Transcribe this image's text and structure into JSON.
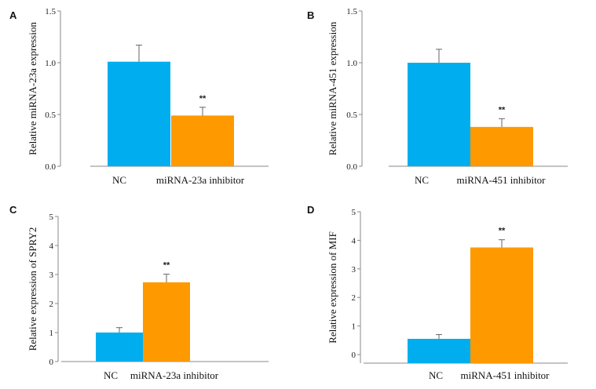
{
  "colors": {
    "nc": "#00AEEF",
    "inhibitor": "#FF9900",
    "axis": "#888888",
    "error": "#666666"
  },
  "chart_data": [
    {
      "panel": "A",
      "type": "bar",
      "categories": [
        "NC",
        "miRNA-23a inhibitor"
      ],
      "values": [
        1.01,
        0.49
      ],
      "errors": [
        0.16,
        0.08
      ],
      "significance": [
        "",
        "**"
      ],
      "ylabel": "Relative miRNA-23a expression",
      "ylim": [
        0,
        1.5
      ],
      "yticks": [
        "0.0",
        "0.5",
        "1.0",
        "1.5"
      ],
      "ytick_values": [
        0,
        0.5,
        1.0,
        1.5
      ],
      "grid": false
    },
    {
      "panel": "B",
      "type": "bar",
      "categories": [
        "NC",
        "miRNA-451 inhibitor"
      ],
      "values": [
        1.0,
        0.38
      ],
      "errors": [
        0.13,
        0.08
      ],
      "significance": [
        "",
        "**"
      ],
      "ylabel": "Relative miRNA-451 expression",
      "ylim": [
        0,
        1.5
      ],
      "yticks": [
        "0.0",
        "0.5",
        "1.0",
        "1.5"
      ],
      "ytick_values": [
        0,
        0.5,
        1.0,
        1.5
      ],
      "grid": false
    },
    {
      "panel": "C",
      "type": "bar",
      "categories": [
        "NC",
        "miRNA-23a inhibitor"
      ],
      "values": [
        1.0,
        2.73
      ],
      "errors": [
        0.17,
        0.28
      ],
      "significance": [
        "",
        "**"
      ],
      "ylabel": "Relative expression of SPRY2",
      "ylim": [
        0,
        5
      ],
      "yticks": [
        "0",
        "1",
        "2",
        "3",
        "4",
        "5"
      ],
      "ytick_values": [
        0,
        1,
        2,
        3,
        4,
        5
      ],
      "grid": false
    },
    {
      "panel": "D",
      "type": "bar",
      "categories": [
        "NC",
        "miRNA-451 inhibitor"
      ],
      "values": [
        0.55,
        3.75
      ],
      "errors": [
        0.15,
        0.27
      ],
      "significance": [
        "",
        "**"
      ],
      "ylabel": "Relative expression of MIF",
      "ylim": [
        -0.3,
        5
      ],
      "yticks": [
        "0",
        "1",
        "2",
        "3",
        "4",
        "5"
      ],
      "ytick_values": [
        0,
        1,
        2,
        3,
        4,
        5
      ],
      "grid": false
    }
  ]
}
